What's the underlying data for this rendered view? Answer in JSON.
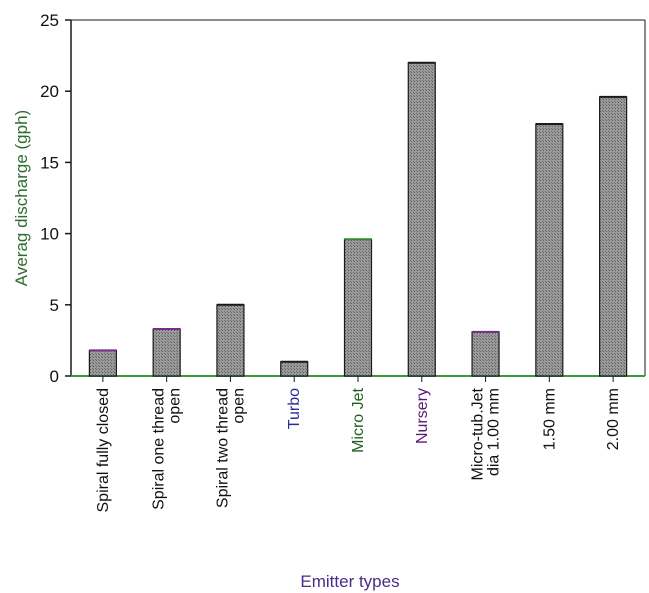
{
  "chart_data": {
    "type": "bar",
    "title": "",
    "xlabel": "Emitter types",
    "ylabel": "Averag discharge (gph)",
    "ylim": [
      0,
      25
    ],
    "yticks": [
      0,
      5,
      10,
      15,
      20,
      25
    ],
    "grid": false,
    "categories": [
      [
        "Spiral fully closed"
      ],
      [
        "Spiral one thread",
        "open"
      ],
      [
        "Spiral two thread",
        "open"
      ],
      [
        "Turbo"
      ],
      [
        "Micro Jet"
      ],
      [
        "Nursery"
      ],
      [
        "Micro-tub.Jet",
        "dia 1.00 mm"
      ],
      [
        "1.50 mm"
      ],
      [
        "2.00 mm"
      ]
    ],
    "values": [
      1.8,
      3.3,
      5.0,
      1.0,
      9.6,
      22.0,
      3.1,
      17.7,
      19.6
    ],
    "colors": {
      "bar_fill": "#8f8f8f",
      "bar_stroke": "#1a1a1a",
      "bar_top_highlight": [
        "#7a2a8a",
        "#7a2a8a",
        "#1a1a1a",
        "#1a1a1a",
        "#2e8b2e",
        "#1a1a1a",
        "#7a2a8a",
        "#1a1a1a",
        "#1a1a1a"
      ],
      "label_colors": [
        "#111111",
        "#111111",
        "#111111",
        "#2a2a9a",
        "#1f5f1f",
        "#5a1a7a",
        "#111111",
        "#111111",
        "#111111"
      ],
      "xaxis_line": "#3a9a3a",
      "ylabel_color": "#2e6b2e",
      "xlabel_color": "#4a2a8a"
    }
  }
}
